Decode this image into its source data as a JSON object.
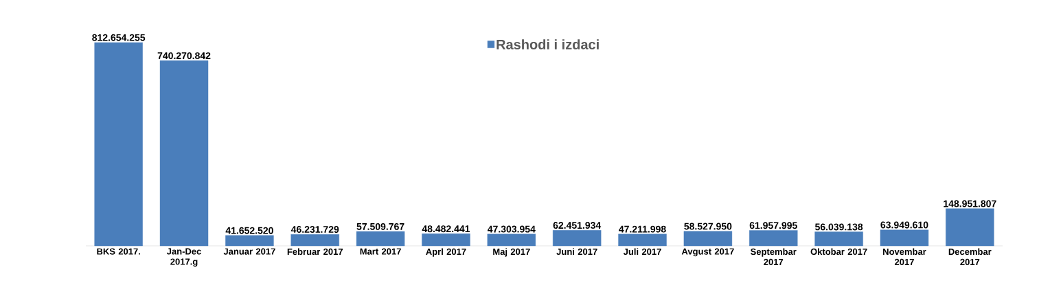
{
  "chart_data": {
    "type": "bar",
    "categories": [
      "BKS  2017.",
      "Jan-Dec 2017.g",
      "Januar 2017",
      "Februar 2017",
      "Mart 2017",
      "Aprl 2017",
      "Maj 2017",
      "Juni 2017",
      "Juli 2017",
      "Avgust 2017",
      "Septembar 2017",
      "Oktobar 2017",
      "Novembar 2017",
      "Decembar 2017"
    ],
    "series": [
      {
        "name": "Rashodi i izdaci",
        "color": "#4a7ebb",
        "values": [
          812654255,
          740270842,
          41652520,
          46231729,
          57509767,
          48482441,
          47303954,
          62451934,
          47211998,
          58527950,
          61957995,
          56039138,
          63949610,
          148951807
        ],
        "value_labels": [
          "812.654.255",
          "740.270.842",
          "41.652.520",
          "46.231.729",
          "57.509.767",
          "48.482.441",
          "47.303.954",
          "62.451.934",
          "47.211.998",
          "58.527.950",
          "61.957.995",
          "56.039.138",
          "63.949.610",
          "148.951.807"
        ]
      }
    ],
    "legend": "top"
  }
}
